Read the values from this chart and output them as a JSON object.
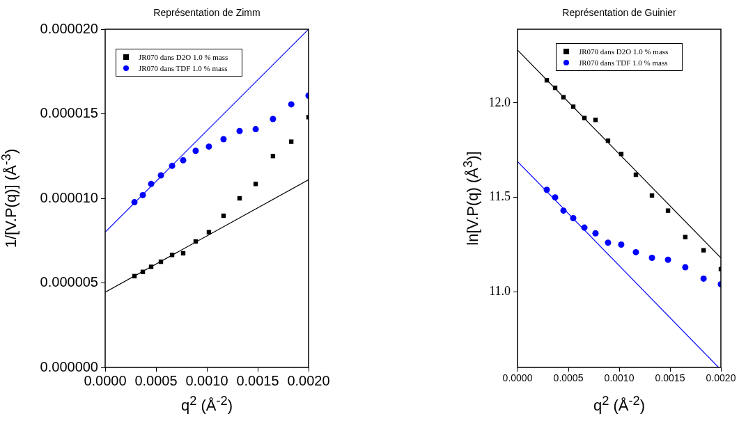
{
  "chart_data": [
    {
      "type": "scatter",
      "title": "Représentation de Zimm",
      "xlabel": "q$^{2}$ (Å$^{-2}$)",
      "ylabel": "1/[V.P(q)]  (Å$^{-3}$)",
      "x": [
        0.000288,
        0.00037,
        0.000452,
        0.000548,
        0.000658,
        0.000767,
        0.00089,
        0.00102,
        0.001164,
        0.001322,
        0.00148,
        0.00165,
        0.00183,
        0.002
      ],
      "series": [
        {
          "name": "JR070 dans D2O 1.0 % mass",
          "type": "scatter",
          "marker": "square",
          "color": "#000000",
          "values": [
            5.4e-06,
            5.65e-06,
            5.95e-06,
            6.25e-06,
            6.65e-06,
            6.75e-06,
            7.45e-06,
            8e-06,
            8.97e-06,
            1e-05,
            1.085e-05,
            1.25e-05,
            1.335e-05,
            1.48e-05
          ]
        },
        {
          "name": "JR070 dans TDF 1.0 % mass",
          "type": "scatter",
          "marker": "circle",
          "color": "#0000ff",
          "values": [
            9.77e-06,
            1.019e-05,
            1.085e-05,
            1.136e-05,
            1.192e-05,
            1.225e-05,
            1.281e-05,
            1.306e-05,
            1.35e-05,
            1.398e-05,
            1.409e-05,
            1.469e-05,
            1.556e-05,
            1.607e-05
          ]
        },
        {
          "type": "line",
          "marker": "none",
          "line_style": "solid",
          "color": "#000000",
          "x": [
            0,
            0.002
          ],
          "values": [
            4.45e-06,
            1.11e-05
          ]
        },
        {
          "type": "line",
          "marker": "none",
          "line_style": "solid",
          "color": "#0000ff",
          "x": [
            0,
            0.002
          ],
          "values": [
            8e-06,
            2e-05
          ]
        }
      ],
      "xlim": [
        0,
        0.002
      ],
      "xticks": [
        {
          "value": 0,
          "label": "0.0000"
        },
        {
          "value": 0.0005,
          "label": "0.0005"
        },
        {
          "value": 0.001,
          "label": "0.0010"
        },
        {
          "value": 0.0015,
          "label": "0.0015"
        },
        {
          "value": 0.002,
          "label": "0.0020"
        }
      ],
      "ylim": [
        0,
        2e-05
      ],
      "yticks": [
        {
          "value": 0,
          "label": "0.000000"
        },
        {
          "value": 5e-06,
          "label": "0.000005"
        },
        {
          "value": 1e-05,
          "label": "0.000010"
        },
        {
          "value": 1.5e-05,
          "label": "0.000015"
        },
        {
          "value": 2e-05,
          "label": "0.000020"
        }
      ],
      "grid": false,
      "legend": "top left"
    },
    {
      "type": "scatter",
      "title": "Représentation de Guinier",
      "xlabel": "q$^{2}$ (Å$^{-2}$)",
      "ylabel": "ln[V.P(q)  (Å$^{3}$)]",
      "x": [
        0.000288,
        0.00037,
        0.000452,
        0.000548,
        0.000658,
        0.000767,
        0.00089,
        0.00102,
        0.001164,
        0.001322,
        0.00148,
        0.00165,
        0.00183,
        0.002
      ],
      "series": [
        {
          "name": "JR070 dans D2O 1.0 % mass",
          "type": "scatter",
          "marker": "square",
          "color": "#000000",
          "values": [
            12.12,
            12.08,
            12.03,
            11.98,
            11.92,
            11.91,
            11.8,
            11.73,
            11.62,
            11.51,
            11.43,
            11.29,
            11.22,
            11.12
          ]
        },
        {
          "name": "JR070 dans TDF 1.0 % mass",
          "type": "scatter",
          "marker": "circle",
          "color": "#0000ff",
          "values": [
            11.54,
            11.5,
            11.43,
            11.39,
            11.34,
            11.31,
            11.26,
            11.25,
            11.21,
            11.18,
            11.17,
            11.13,
            11.07,
            11.04
          ]
        },
        {
          "type": "line",
          "marker": "none",
          "line_style": "solid",
          "color": "#000000",
          "x": [
            0,
            0.002
          ],
          "values": [
            12.28,
            11.18
          ]
        },
        {
          "type": "line",
          "marker": "none",
          "line_style": "solid",
          "color": "#0000ff",
          "x": [
            0,
            0.001977
          ],
          "values": [
            11.69,
            10.6
          ]
        }
      ],
      "xlim": [
        0,
        0.002
      ],
      "xticks": [
        {
          "value": 0,
          "label": "0.0000"
        },
        {
          "value": 0.0005,
          "label": "0.0005"
        },
        {
          "value": 0.001,
          "label": "0.0010"
        },
        {
          "value": 0.0015,
          "label": "0.0015"
        },
        {
          "value": 0.002,
          "label": "0.0020"
        }
      ],
      "ylim": [
        10.6,
        12.39
      ],
      "yticks": [
        {
          "value": 11,
          "label": "11.0"
        },
        {
          "value": 11.5,
          "label": "11.5"
        },
        {
          "value": 12,
          "label": "12.0"
        }
      ],
      "grid": false,
      "legend": "top right"
    }
  ]
}
